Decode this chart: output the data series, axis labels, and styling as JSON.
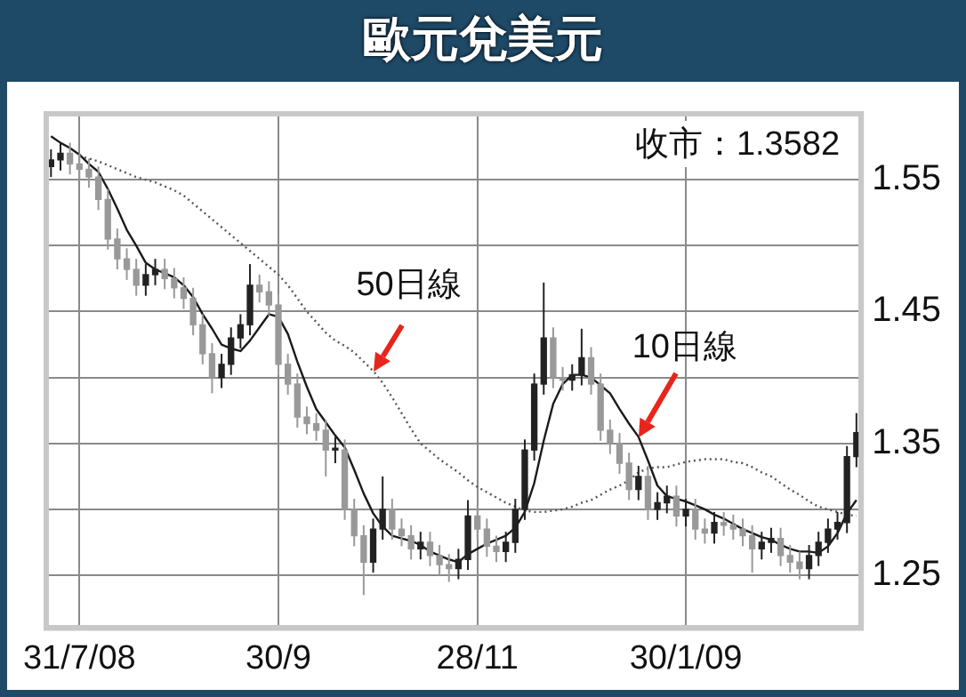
{
  "chart_data": {
    "type": "candlestick",
    "title": "歐元兌美元",
    "annotations": [
      "收市：1.3582"
    ],
    "categories": [
      null,
      null,
      null,
      "31/7/08",
      null,
      null,
      null,
      null,
      null,
      null,
      null,
      null,
      null,
      null,
      null,
      null,
      null,
      null,
      null,
      null,
      null,
      null,
      null,
      null,
      "30/9",
      null,
      null,
      null,
      null,
      null,
      null,
      null,
      null,
      null,
      null,
      null,
      null,
      null,
      null,
      null,
      null,
      null,
      null,
      null,
      null,
      "28/11",
      null,
      null,
      null,
      null,
      null,
      null,
      null,
      null,
      null,
      null,
      null,
      null,
      null,
      null,
      null,
      null,
      null,
      null,
      null,
      null,
      null,
      "30/1/09",
      null,
      null,
      null,
      null,
      null,
      null,
      null,
      null,
      null,
      null,
      null,
      null,
      null,
      null,
      null,
      null,
      null,
      null
    ],
    "colors": [
      "#222222",
      "#222222",
      "#999999",
      "#999999",
      "#999999",
      "#999999",
      "#999999",
      "#999999",
      "#999999",
      "#999999",
      "#222222",
      "#222222",
      "#999999",
      "#999999",
      "#999999",
      "#999999",
      "#999999",
      "#999999",
      "#222222",
      "#222222",
      "#222222",
      "#222222",
      "#999999",
      "#999999",
      "#999999",
      "#999999",
      "#999999",
      "#999999",
      "#999999",
      "#999999",
      "#222222",
      "#999999",
      "#999999",
      "#999999",
      "#222222",
      "#222222",
      "#999999",
      "#999999",
      "#999999",
      "#222222",
      "#999999",
      "#999999",
      "#999999",
      "#222222",
      "#222222",
      "#999999",
      "#999999",
      "#999999",
      "#222222",
      "#222222",
      "#222222",
      "#222222",
      "#222222",
      "#999999",
      "#999999",
      "#222222",
      "#222222",
      "#999999",
      "#999999",
      "#999999",
      "#999999",
      "#999999",
      "#222222",
      "#999999",
      "#222222",
      "#222222",
      "#999999",
      "#222222",
      "#999999",
      "#999999",
      "#222222",
      "#999999",
      "#999999",
      "#999999",
      "#999999",
      "#222222",
      "#222222",
      "#999999",
      "#999999",
      "#999999",
      "#222222",
      "#222222",
      "#222222",
      "#222222",
      "#222222",
      "#222222"
    ],
    "ohlc": [
      [
        1.56,
        1.573,
        1.552,
        1.565
      ],
      [
        1.565,
        1.578,
        1.557,
        1.57
      ],
      [
        1.57,
        1.578,
        1.554,
        1.562
      ],
      [
        1.562,
        1.57,
        1.55,
        1.558
      ],
      [
        1.558,
        1.566,
        1.544,
        1.552
      ],
      [
        1.552,
        1.56,
        1.527,
        1.535
      ],
      [
        1.535,
        1.543,
        1.497,
        1.505
      ],
      [
        1.505,
        1.513,
        1.482,
        1.49
      ],
      [
        1.49,
        1.498,
        1.474,
        1.482
      ],
      [
        1.482,
        1.49,
        1.462,
        1.47
      ],
      [
        1.47,
        1.486,
        1.462,
        1.478
      ],
      [
        1.478,
        1.49,
        1.47,
        1.482
      ],
      [
        1.482,
        1.49,
        1.467,
        1.475
      ],
      [
        1.475,
        1.483,
        1.46,
        1.468
      ],
      [
        1.468,
        1.476,
        1.452,
        1.46
      ],
      [
        1.46,
        1.468,
        1.432,
        1.44
      ],
      [
        1.44,
        1.448,
        1.41,
        1.418
      ],
      [
        1.418,
        1.426,
        1.388,
        1.4
      ],
      [
        1.4,
        1.418,
        1.392,
        1.41
      ],
      [
        1.41,
        1.438,
        1.402,
        1.43
      ],
      [
        1.43,
        1.448,
        1.422,
        1.44
      ],
      [
        1.44,
        1.486,
        1.432,
        1.47
      ],
      [
        1.47,
        1.478,
        1.457,
        1.465
      ],
      [
        1.465,
        1.473,
        1.447,
        1.455
      ],
      [
        1.455,
        1.463,
        1.402,
        1.41
      ],
      [
        1.41,
        1.418,
        1.387,
        1.395
      ],
      [
        1.395,
        1.403,
        1.362,
        1.37
      ],
      [
        1.37,
        1.378,
        1.357,
        1.365
      ],
      [
        1.365,
        1.373,
        1.352,
        1.36
      ],
      [
        1.36,
        1.368,
        1.325,
        1.345
      ],
      [
        1.345,
        1.355,
        1.335,
        1.345
      ],
      [
        1.345,
        1.353,
        1.292,
        1.3
      ],
      [
        1.3,
        1.308,
        1.272,
        1.28
      ],
      [
        1.28,
        1.288,
        1.235,
        1.26
      ],
      [
        1.26,
        1.293,
        1.252,
        1.285
      ],
      [
        1.285,
        1.325,
        1.277,
        1.3
      ],
      [
        1.3,
        1.308,
        1.277,
        1.285
      ],
      [
        1.285,
        1.293,
        1.272,
        1.28
      ],
      [
        1.28,
        1.288,
        1.262,
        1.27
      ],
      [
        1.27,
        1.283,
        1.262,
        1.275
      ],
      [
        1.275,
        1.283,
        1.257,
        1.265
      ],
      [
        1.265,
        1.273,
        1.25,
        1.258
      ],
      [
        1.258,
        1.266,
        1.245,
        1.255
      ],
      [
        1.255,
        1.27,
        1.247,
        1.262
      ],
      [
        1.262,
        1.307,
        1.254,
        1.295
      ],
      [
        1.295,
        1.303,
        1.277,
        1.285
      ],
      [
        1.285,
        1.293,
        1.264,
        1.272
      ],
      [
        1.272,
        1.28,
        1.26,
        1.268
      ],
      [
        1.268,
        1.283,
        1.26,
        1.275
      ],
      [
        1.275,
        1.308,
        1.267,
        1.3
      ],
      [
        1.3,
        1.353,
        1.292,
        1.345
      ],
      [
        1.345,
        1.403,
        1.337,
        1.395
      ],
      [
        1.395,
        1.472,
        1.387,
        1.43
      ],
      [
        1.43,
        1.438,
        1.392,
        1.4
      ],
      [
        1.4,
        1.408,
        1.39,
        1.398
      ],
      [
        1.398,
        1.41,
        1.39,
        1.402
      ],
      [
        1.402,
        1.437,
        1.394,
        1.415
      ],
      [
        1.415,
        1.423,
        1.387,
        1.395
      ],
      [
        1.395,
        1.403,
        1.352,
        1.36
      ],
      [
        1.36,
        1.368,
        1.342,
        1.35
      ],
      [
        1.35,
        1.358,
        1.327,
        1.335
      ],
      [
        1.335,
        1.343,
        1.307,
        1.315
      ],
      [
        1.315,
        1.333,
        1.307,
        1.325
      ],
      [
        1.325,
        1.333,
        1.292,
        1.3
      ],
      [
        1.3,
        1.313,
        1.292,
        1.305
      ],
      [
        1.305,
        1.318,
        1.297,
        1.31
      ],
      [
        1.31,
        1.318,
        1.287,
        1.295
      ],
      [
        1.295,
        1.308,
        1.287,
        1.3
      ],
      [
        1.3,
        1.308,
        1.277,
        1.285
      ],
      [
        1.285,
        1.293,
        1.274,
        1.282
      ],
      [
        1.282,
        1.298,
        1.274,
        1.29
      ],
      [
        1.29,
        1.298,
        1.28,
        1.288
      ],
      [
        1.288,
        1.296,
        1.277,
        1.285
      ],
      [
        1.285,
        1.293,
        1.272,
        1.28
      ],
      [
        1.28,
        1.288,
        1.252,
        1.27
      ],
      [
        1.27,
        1.283,
        1.262,
        1.275
      ],
      [
        1.275,
        1.286,
        1.267,
        1.278
      ],
      [
        1.278,
        1.286,
        1.257,
        1.265
      ],
      [
        1.265,
        1.273,
        1.252,
        1.26
      ],
      [
        1.26,
        1.268,
        1.247,
        1.255
      ],
      [
        1.255,
        1.273,
        1.247,
        1.265
      ],
      [
        1.265,
        1.283,
        1.257,
        1.275
      ],
      [
        1.275,
        1.293,
        1.267,
        1.285
      ],
      [
        1.285,
        1.298,
        1.277,
        1.29
      ],
      [
        1.29,
        1.348,
        1.282,
        1.34
      ],
      [
        1.34,
        1.373,
        1.332,
        1.3582
      ]
    ],
    "series": [
      {
        "name": "50日線",
        "type": "line",
        "line_style": "dotted",
        "color": "#555555",
        "values": [
          null,
          null,
          null,
          1.568,
          1.566,
          1.564,
          1.561,
          1.558,
          1.555,
          1.552,
          1.55,
          1.548,
          1.545,
          1.542,
          1.538,
          1.532,
          1.526,
          1.52,
          1.514,
          1.508,
          1.502,
          1.496,
          1.49,
          1.484,
          1.478,
          1.47,
          1.46,
          1.45,
          1.442,
          1.434,
          1.428,
          1.424,
          1.419,
          1.412,
          1.405,
          1.396,
          1.385,
          1.373,
          1.361,
          1.35,
          1.344,
          1.338,
          1.333,
          1.328,
          1.322,
          1.317,
          1.313,
          1.309,
          1.305,
          1.302,
          1.299,
          1.298,
          1.298,
          1.299,
          1.3,
          1.302,
          1.305,
          1.307,
          1.311,
          1.315,
          1.318,
          1.322,
          1.328,
          1.331,
          1.332,
          1.332,
          1.334,
          1.336,
          1.337,
          1.338,
          1.338,
          1.338,
          1.336,
          1.335,
          1.332,
          1.328,
          1.325,
          1.32,
          1.315,
          1.311,
          1.306,
          1.302,
          1.3,
          1.298,
          1.296,
          1.295
        ]
      },
      {
        "name": "10日線",
        "type": "line",
        "line_style": "solid",
        "color": "#1a1a1a",
        "values": [
          1.583,
          1.578,
          1.574,
          1.569,
          1.562,
          1.556,
          1.543,
          1.528,
          1.512,
          1.5,
          1.487,
          1.482,
          1.479,
          1.476,
          1.47,
          1.461,
          1.448,
          1.437,
          1.425,
          1.422,
          1.42,
          1.428,
          1.438,
          1.448,
          1.446,
          1.433,
          1.412,
          1.393,
          1.376,
          1.366,
          1.356,
          1.347,
          1.33,
          1.312,
          1.297,
          1.287,
          1.28,
          1.278,
          1.276,
          1.273,
          1.268,
          1.265,
          1.262,
          1.26,
          1.266,
          1.27,
          1.274,
          1.277,
          1.28,
          1.286,
          1.298,
          1.32,
          1.352,
          1.38,
          1.395,
          1.402,
          1.402,
          1.4,
          1.394,
          1.388,
          1.376,
          1.365,
          1.355,
          1.337,
          1.318,
          1.31,
          1.308,
          1.306,
          1.303,
          1.3,
          1.296,
          1.293,
          1.289,
          1.285,
          1.282,
          1.279,
          1.277,
          1.273,
          1.27,
          1.268,
          1.268,
          1.267,
          1.272,
          1.282,
          1.297,
          1.307
        ]
      }
    ],
    "ylim": [
      1.21,
      1.6
    ],
    "yticks": [
      1.25,
      {
        "value": 1.3,
        "label": null
      },
      1.35,
      {
        "value": 1.4,
        "label": null
      },
      1.45,
      {
        "value": 1.5,
        "label": null
      },
      1.55,
      {
        "value": 1.6,
        "label": null
      }
    ],
    "grid": true,
    "legend": false
  }
}
